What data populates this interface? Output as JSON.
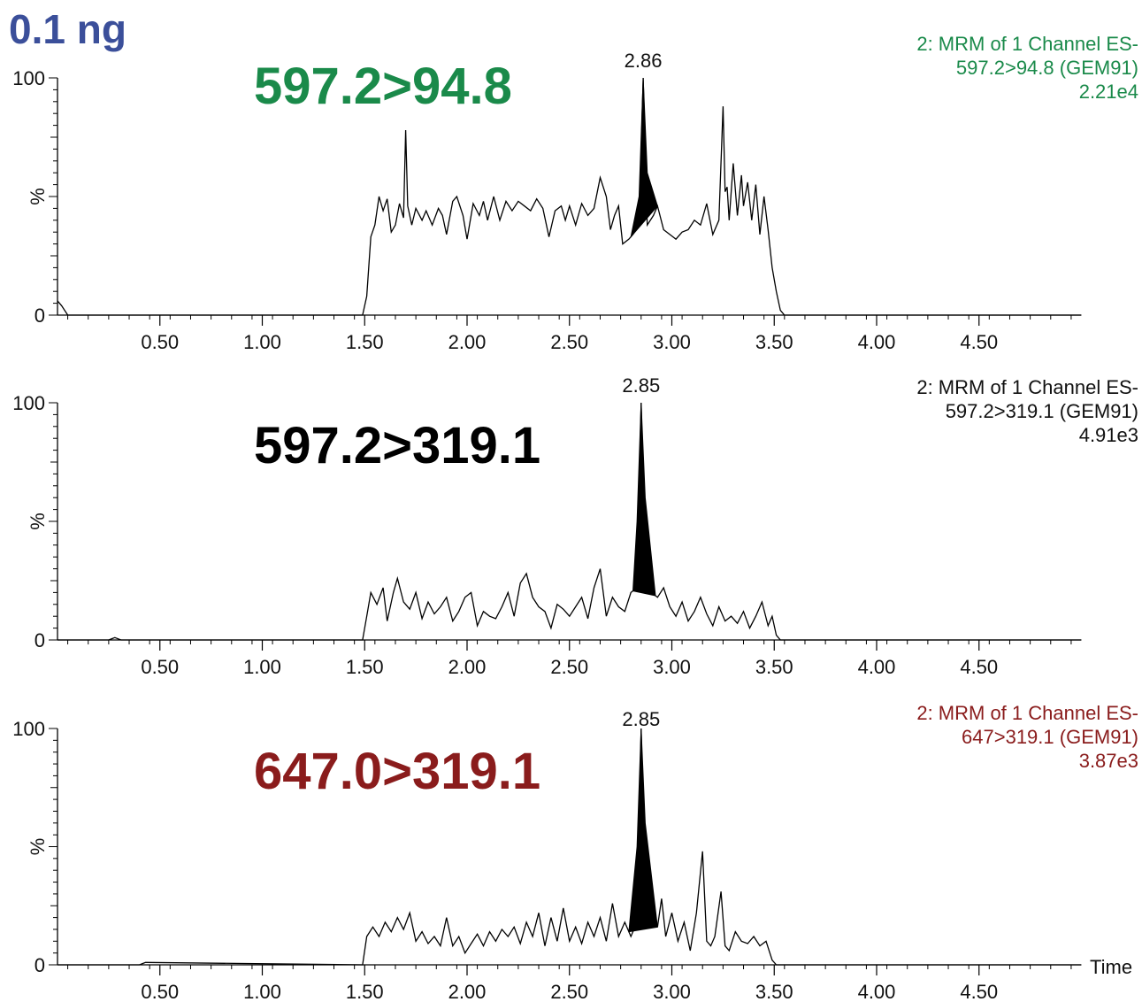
{
  "page_title": "0.1 ng",
  "chart_data": [
    {
      "type": "line",
      "transition_label": "597.2>94.8",
      "transition_color": "#1a8a4a",
      "info_lines": [
        "2: MRM of 1 Channel ES-",
        "597.2>94.8 (GEM91)",
        "2.21e4"
      ],
      "info_color": "#1a8a4a",
      "peak_label": "2.86",
      "ylabel": "%",
      "y_ticks": [
        "0",
        "100"
      ],
      "xlim": [
        0,
        5.0
      ],
      "ylim": [
        0,
        100
      ],
      "x_ticks": [
        "0.50",
        "1.00",
        "1.50",
        "2.00",
        "2.50",
        "3.00",
        "3.50",
        "4.00",
        "4.50"
      ],
      "peak": {
        "x": 2.86,
        "y": 100,
        "start": 2.8,
        "end": 2.93
      },
      "x": [
        0.0,
        0.02,
        0.05,
        1.49,
        1.51,
        1.53,
        1.55,
        1.57,
        1.59,
        1.61,
        1.63,
        1.65,
        1.67,
        1.69,
        1.7,
        1.71,
        1.73,
        1.75,
        1.78,
        1.8,
        1.83,
        1.86,
        1.88,
        1.9,
        1.93,
        1.95,
        1.98,
        2.0,
        2.03,
        2.06,
        2.08,
        2.1,
        2.13,
        2.16,
        2.19,
        2.22,
        2.25,
        2.28,
        2.31,
        2.34,
        2.37,
        2.4,
        2.43,
        2.46,
        2.48,
        2.5,
        2.53,
        2.56,
        2.59,
        2.62,
        2.65,
        2.68,
        2.7,
        2.72,
        2.74,
        2.76,
        2.79,
        2.81,
        2.84,
        2.86,
        2.88,
        2.91,
        2.93,
        2.96,
        2.99,
        3.02,
        3.05,
        3.08,
        3.11,
        3.14,
        3.17,
        3.2,
        3.23,
        3.25,
        3.26,
        3.27,
        3.28,
        3.3,
        3.32,
        3.34,
        3.35,
        3.37,
        3.39,
        3.41,
        3.43,
        3.45,
        3.47,
        3.49,
        3.51,
        3.53,
        3.55,
        3.57,
        5.0
      ],
      "y": [
        6,
        4,
        0,
        0,
        8,
        33,
        38,
        50,
        44,
        49,
        35,
        38,
        47,
        41,
        78,
        46,
        38,
        45,
        40,
        44,
        38,
        45,
        42,
        34,
        48,
        50,
        42,
        32,
        47,
        42,
        48,
        40,
        50,
        40,
        48,
        44,
        48,
        46,
        44,
        49,
        45,
        33,
        44,
        46,
        40,
        46,
        38,
        47,
        42,
        45,
        58,
        50,
        36,
        42,
        46,
        30,
        32,
        34,
        38,
        100,
        38,
        42,
        46,
        36,
        34,
        32,
        35,
        36,
        40,
        38,
        47,
        34,
        40,
        88,
        52,
        54,
        40,
        64,
        42,
        59,
        46,
        56,
        40,
        55,
        34,
        50,
        36,
        20,
        10,
        2,
        0,
        0,
        0
      ]
    },
    {
      "type": "line",
      "transition_label": "597.2>319.1",
      "transition_color": "#000000",
      "info_lines": [
        "2: MRM of 1 Channel ES-",
        "597.2>319.1 (GEM91)",
        "4.91e3"
      ],
      "info_color": "#111111",
      "peak_label": "2.85",
      "ylabel": "%",
      "y_ticks": [
        "0",
        "100"
      ],
      "xlim": [
        0,
        5.0
      ],
      "ylim": [
        0,
        100
      ],
      "x_ticks": [
        "0.50",
        "1.00",
        "1.50",
        "2.00",
        "2.50",
        "3.00",
        "3.50",
        "4.00",
        "4.50"
      ],
      "peak": {
        "x": 2.85,
        "y": 100,
        "start": 2.81,
        "end": 2.92
      },
      "x": [
        0.0,
        0.25,
        0.28,
        0.31,
        1.49,
        1.51,
        1.53,
        1.56,
        1.59,
        1.61,
        1.64,
        1.66,
        1.69,
        1.72,
        1.75,
        1.78,
        1.81,
        1.84,
        1.87,
        1.9,
        1.93,
        1.96,
        1.99,
        2.02,
        2.05,
        2.08,
        2.11,
        2.14,
        2.17,
        2.2,
        2.23,
        2.26,
        2.29,
        2.32,
        2.35,
        2.38,
        2.41,
        2.44,
        2.47,
        2.5,
        2.53,
        2.56,
        2.59,
        2.62,
        2.65,
        2.68,
        2.71,
        2.74,
        2.77,
        2.8,
        2.83,
        2.85,
        2.87,
        2.9,
        2.93,
        2.96,
        2.99,
        3.02,
        3.05,
        3.08,
        3.11,
        3.14,
        3.17,
        3.2,
        3.23,
        3.26,
        3.29,
        3.32,
        3.35,
        3.38,
        3.41,
        3.44,
        3.47,
        3.49,
        3.51,
        3.53,
        5.0
      ],
      "y": [
        0,
        0,
        1,
        0,
        0,
        10,
        20,
        15,
        22,
        8,
        20,
        26,
        16,
        13,
        20,
        9,
        16,
        11,
        14,
        18,
        8,
        12,
        18,
        20,
        6,
        12,
        10,
        9,
        14,
        20,
        10,
        24,
        28,
        18,
        14,
        12,
        5,
        15,
        13,
        10,
        14,
        18,
        9,
        22,
        30,
        10,
        18,
        14,
        12,
        20,
        22,
        100,
        22,
        20,
        18,
        22,
        14,
        10,
        16,
        8,
        12,
        18,
        11,
        6,
        14,
        8,
        10,
        7,
        12,
        5,
        10,
        16,
        6,
        10,
        2,
        0,
        0
      ]
    },
    {
      "type": "line",
      "transition_label": "647.0>319.1",
      "transition_color": "#8a1c1c",
      "info_lines": [
        "2: MRM of 1 Channel ES-",
        "647>319.1 (GEM91)",
        "3.87e3"
      ],
      "info_color": "#8a1c1c",
      "peak_label": "2.85",
      "ylabel": "%",
      "y_ticks": [
        "0",
        "100"
      ],
      "xlim": [
        0,
        5.0
      ],
      "ylim": [
        0,
        100
      ],
      "x_ticks": [
        "0.50",
        "1.00",
        "1.50",
        "2.00",
        "2.50",
        "3.00",
        "3.50",
        "4.00",
        "4.50"
      ],
      "x_axis_title": "Time",
      "peak": {
        "x": 2.85,
        "y": 100,
        "start": 2.79,
        "end": 2.93
      },
      "x": [
        0.0,
        0.4,
        0.43,
        1.49,
        1.51,
        1.54,
        1.57,
        1.6,
        1.63,
        1.66,
        1.69,
        1.72,
        1.75,
        1.78,
        1.81,
        1.84,
        1.87,
        1.9,
        1.93,
        1.96,
        1.99,
        2.02,
        2.05,
        2.08,
        2.11,
        2.14,
        2.17,
        2.2,
        2.23,
        2.26,
        2.29,
        2.32,
        2.35,
        2.38,
        2.41,
        2.44,
        2.47,
        2.5,
        2.53,
        2.56,
        2.59,
        2.62,
        2.65,
        2.68,
        2.71,
        2.74,
        2.77,
        2.8,
        2.83,
        2.85,
        2.87,
        2.9,
        2.93,
        2.95,
        2.97,
        3.0,
        3.03,
        3.06,
        3.09,
        3.12,
        3.15,
        3.17,
        3.19,
        3.21,
        3.24,
        3.26,
        3.28,
        3.31,
        3.34,
        3.37,
        3.4,
        3.43,
        3.46,
        3.49,
        3.51,
        3.53,
        5.0
      ],
      "y": [
        0,
        0,
        1,
        0,
        12,
        16,
        12,
        18,
        14,
        20,
        15,
        22,
        10,
        14,
        9,
        12,
        8,
        20,
        8,
        12,
        5,
        9,
        13,
        8,
        14,
        10,
        15,
        12,
        16,
        9,
        18,
        12,
        22,
        8,
        20,
        10,
        24,
        10,
        16,
        9,
        18,
        12,
        20,
        10,
        26,
        12,
        18,
        12,
        18,
        100,
        18,
        24,
        16,
        28,
        12,
        22,
        10,
        18,
        6,
        22,
        48,
        10,
        8,
        12,
        31,
        8,
        6,
        14,
        10,
        9,
        12,
        8,
        10,
        2,
        0,
        0,
        0
      ]
    }
  ]
}
